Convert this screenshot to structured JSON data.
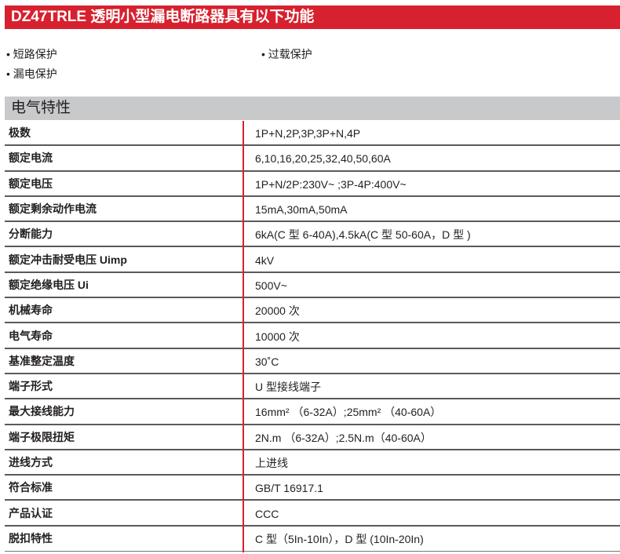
{
  "title": "DZ47TRLE 透明小型漏电断路器具有以下功能",
  "features": [
    "• 短路保护",
    "• 过载保护",
    "• 漏电保护"
  ],
  "section_title": "电气特性",
  "colors": {
    "accent": "#d7212e",
    "section_bg": "#c8c9cb"
  },
  "specs": [
    {
      "k": "极数",
      "v": "1P+N,2P,3P,3P+N,4P"
    },
    {
      "k": "额定电流",
      "v": "6,10,16,20,25,32,40,50,60A"
    },
    {
      "k": "额定电压",
      "v": "1P+N/2P:230V~ ;3P-4P:400V~"
    },
    {
      "k": "额定剩余动作电流",
      "v": "15mA,30mA,50mA"
    },
    {
      "k": "分断能力",
      "v": "6kA(C 型 6-40A),4.5kA(C 型 50-60A，D 型 )"
    },
    {
      "k": "额定冲击耐受电压 Uimp",
      "v": "4kV"
    },
    {
      "k": "额定绝缘电压 Ui",
      "v": "500V~"
    },
    {
      "k": "机械寿命",
      "v": "20000 次"
    },
    {
      "k": "电气寿命",
      "v": "10000 次"
    },
    {
      "k": "基准整定温度",
      "v": "30˚C"
    },
    {
      "k": "端子形式",
      "v": "U 型接线端子"
    },
    {
      "k": "最大接线能力",
      "v": "16mm² （6-32A）;25mm² （40-60A）"
    },
    {
      "k": "端子极限扭矩",
      "v": "2N.m （6-32A）;2.5N.m（40-60A）"
    },
    {
      "k": "进线方式",
      "v": "上进线"
    },
    {
      "k": "符合标准",
      "v": "GB/T 16917.1"
    },
    {
      "k": "产品认证",
      "v": "CCC"
    },
    {
      "k": "脱扣特性",
      "v": "C 型（5In-10In），D 型 (10In-20In)"
    }
  ]
}
